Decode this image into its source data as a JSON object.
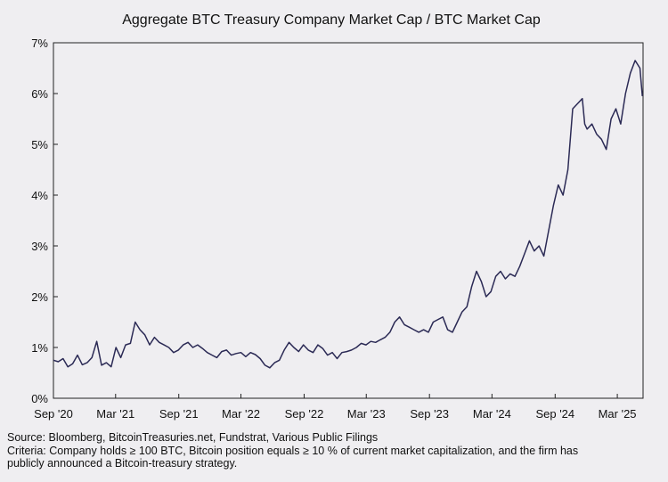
{
  "chart_data": {
    "type": "line",
    "title": "Aggregate BTC Treasury Company Market Cap / BTC Market Cap",
    "xlabel": "",
    "ylabel": "",
    "x_range": [
      "2020-09-01",
      "2025-05-15"
    ],
    "x_ticks": [
      {
        "date": "2020-09-01",
        "label": "Sep '20"
      },
      {
        "date": "2021-03-01",
        "label": "Mar '21"
      },
      {
        "date": "2021-09-01",
        "label": "Sep '21"
      },
      {
        "date": "2022-03-01",
        "label": "Mar '22"
      },
      {
        "date": "2022-09-01",
        "label": "Sep '22"
      },
      {
        "date": "2023-03-01",
        "label": "Mar '23"
      },
      {
        "date": "2023-09-01",
        "label": "Sep '23"
      },
      {
        "date": "2024-03-01",
        "label": "Mar '24"
      },
      {
        "date": "2024-09-01",
        "label": "Sep '24"
      },
      {
        "date": "2025-03-01",
        "label": "Mar '25"
      }
    ],
    "ylim": [
      0,
      7
    ],
    "y_ticks": [
      {
        "value": 0,
        "label": "0%"
      },
      {
        "value": 1,
        "label": "1%"
      },
      {
        "value": 2,
        "label": "2%"
      },
      {
        "value": 3,
        "label": "3%"
      },
      {
        "value": 4,
        "label": "4%"
      },
      {
        "value": 5,
        "label": "5%"
      },
      {
        "value": 6,
        "label": "6%"
      },
      {
        "value": 7,
        "label": "7%"
      }
    ],
    "grid": false,
    "line_color": "#2b2a55",
    "series": [
      {
        "x": [
          "2020-09-01",
          "2020-09-15",
          "2020-09-29",
          "2020-10-13",
          "2020-10-27",
          "2020-11-10",
          "2020-11-24",
          "2020-12-08",
          "2020-12-22",
          "2021-01-05",
          "2021-01-19",
          "2021-02-02",
          "2021-02-16",
          "2021-03-02",
          "2021-03-16",
          "2021-03-30",
          "2021-04-13",
          "2021-04-27",
          "2021-05-11",
          "2021-05-25",
          "2021-06-08",
          "2021-06-22",
          "2021-07-06",
          "2021-07-20",
          "2021-08-03",
          "2021-08-17",
          "2021-08-31",
          "2021-09-14",
          "2021-09-28",
          "2021-10-12",
          "2021-10-26",
          "2021-11-09",
          "2021-11-23",
          "2021-12-07",
          "2021-12-21",
          "2022-01-04",
          "2022-01-18",
          "2022-02-01",
          "2022-02-15",
          "2022-03-01",
          "2022-03-15",
          "2022-03-29",
          "2022-04-12",
          "2022-04-26",
          "2022-05-10",
          "2022-05-24",
          "2022-06-07",
          "2022-06-21",
          "2022-07-05",
          "2022-07-19",
          "2022-08-02",
          "2022-08-16",
          "2022-08-30",
          "2022-09-13",
          "2022-09-27",
          "2022-10-11",
          "2022-10-25",
          "2022-11-08",
          "2022-11-22",
          "2022-12-06",
          "2022-12-20",
          "2023-01-03",
          "2023-01-17",
          "2023-01-31",
          "2023-02-14",
          "2023-02-28",
          "2023-03-14",
          "2023-03-28",
          "2023-04-11",
          "2023-04-25",
          "2023-05-09",
          "2023-05-23",
          "2023-06-06",
          "2023-06-20",
          "2023-07-04",
          "2023-07-18",
          "2023-08-01",
          "2023-08-15",
          "2023-08-29",
          "2023-09-12",
          "2023-09-26",
          "2023-10-10",
          "2023-10-24",
          "2023-11-07",
          "2023-11-21",
          "2023-12-05",
          "2023-12-19",
          "2024-01-02",
          "2024-01-16",
          "2024-01-30",
          "2024-02-13",
          "2024-02-27",
          "2024-03-12",
          "2024-03-26",
          "2024-04-09",
          "2024-04-23",
          "2024-05-07",
          "2024-05-21",
          "2024-06-04",
          "2024-06-18",
          "2024-07-02",
          "2024-07-16",
          "2024-07-30",
          "2024-08-13",
          "2024-08-27",
          "2024-09-10",
          "2024-09-24",
          "2024-10-08",
          "2024-10-22",
          "2024-11-05",
          "2024-11-19",
          "2024-11-26",
          "2024-12-03",
          "2024-12-17",
          "2024-12-31",
          "2025-01-14",
          "2025-01-28",
          "2025-02-11",
          "2025-02-25",
          "2025-03-11",
          "2025-03-25",
          "2025-04-08",
          "2025-04-22",
          "2025-05-06",
          "2025-05-13"
        ],
        "y": [
          0.75,
          0.72,
          0.78,
          0.62,
          0.68,
          0.85,
          0.66,
          0.7,
          0.8,
          1.12,
          0.65,
          0.7,
          0.62,
          1.0,
          0.8,
          1.05,
          1.08,
          1.5,
          1.35,
          1.25,
          1.05,
          1.2,
          1.1,
          1.05,
          1.0,
          0.9,
          0.95,
          1.05,
          1.1,
          1.0,
          1.05,
          0.98,
          0.9,
          0.85,
          0.8,
          0.92,
          0.95,
          0.85,
          0.88,
          0.9,
          0.82,
          0.9,
          0.86,
          0.78,
          0.65,
          0.6,
          0.7,
          0.75,
          0.95,
          1.1,
          1.0,
          0.92,
          1.05,
          0.95,
          0.9,
          1.05,
          0.98,
          0.85,
          0.9,
          0.78,
          0.9,
          0.92,
          0.95,
          1.0,
          1.08,
          1.05,
          1.12,
          1.1,
          1.15,
          1.2,
          1.3,
          1.5,
          1.6,
          1.45,
          1.4,
          1.35,
          1.3,
          1.35,
          1.3,
          1.5,
          1.55,
          1.6,
          1.35,
          1.3,
          1.5,
          1.7,
          1.8,
          2.2,
          2.5,
          2.3,
          2.0,
          2.1,
          2.4,
          2.5,
          2.35,
          2.45,
          2.4,
          2.6,
          2.85,
          3.1,
          2.9,
          3.0,
          2.8,
          3.3,
          3.8,
          4.2,
          4.0,
          4.5,
          5.7,
          5.8,
          5.9,
          5.4,
          5.3,
          5.4,
          5.2,
          5.1,
          4.9,
          5.5,
          5.7,
          5.4,
          6.0,
          6.4,
          6.65,
          6.5,
          5.95
        ]
      }
    ]
  },
  "footer": {
    "source": "Source: Bloomberg, BitcoinTreasuries.net, Fundstrat, Various Public Filings",
    "criteria_line1": "Criteria: Company holds ≥ 100 BTC, Bitcoin position equals ≥ 10 % of current market capitalization, and the firm has",
    "criteria_line2": "publicly announced a Bitcoin-treasury strategy."
  }
}
